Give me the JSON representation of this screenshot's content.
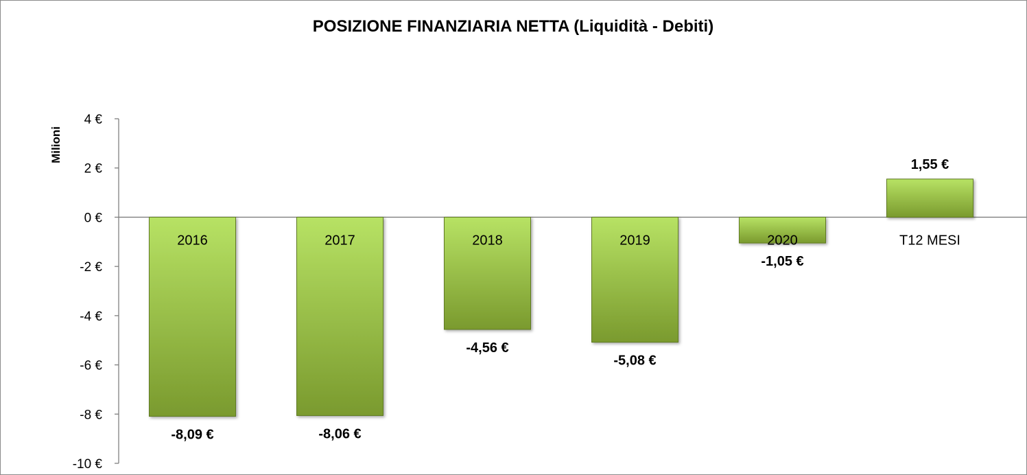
{
  "chart_data": {
    "type": "bar",
    "title": "POSIZIONE FINANZIARIA NETTA (Liquidità - Debiti)",
    "ylabel": "Milioni",
    "xlabel": "",
    "categories": [
      "2016",
      "2017",
      "2018",
      "2019",
      "2020",
      "T12 MESI"
    ],
    "values": [
      -8.09,
      -8.06,
      -4.56,
      -5.08,
      -1.05,
      1.55
    ],
    "data_labels": [
      "-8,09 €",
      "-8,06 €",
      "-4,56 €",
      "-5,08 €",
      "-1,05 €",
      "1,55 €"
    ],
    "ylim": [
      -10,
      4
    ],
    "yticks": [
      4,
      2,
      0,
      -2,
      -4,
      -6,
      -8,
      -10
    ],
    "ytick_labels": [
      "4 €",
      "2 €",
      "0 €",
      "-2 €",
      "-4 €",
      "-6 €",
      "-8 €",
      "-10 €"
    ],
    "grid": false,
    "legend": "none",
    "colors": {
      "bar_light": "#b7e264",
      "bar_dark": "#7a9a2e",
      "bar_edge": "#5f7a22",
      "axis": "#7f7f7f"
    }
  }
}
